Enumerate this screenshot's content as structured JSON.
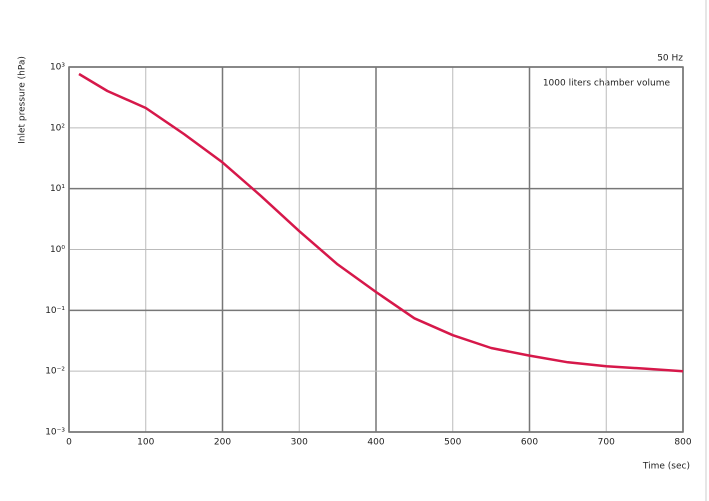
{
  "chart_data": {
    "type": "line",
    "log_y": true,
    "grid": true,
    "y_label": "Inlet pressure (hPa)",
    "x_label": "Time (sec)",
    "annotations": [
      "50 Hz",
      "1000 liters chamber volume"
    ],
    "xlim": [
      0,
      800
    ],
    "xticks": [
      0,
      100,
      200,
      300,
      400,
      500,
      600,
      700,
      800
    ],
    "ylim": [
      0.001,
      1000
    ],
    "yticks": [
      {
        "value": 0.001,
        "label": "10⁻³"
      },
      {
        "value": 0.01,
        "label": "10⁻²"
      },
      {
        "value": 0.1,
        "label": "10⁻¹"
      },
      {
        "value": 1,
        "label": "10⁰"
      },
      {
        "value": 10,
        "label": "10¹"
      },
      {
        "value": 100,
        "label": "10²"
      },
      {
        "value": 1000,
        "label": "10³"
      }
    ],
    "x": [
      13,
      50,
      100,
      150,
      200,
      250,
      300,
      350,
      400,
      450,
      500,
      550,
      600,
      650,
      700,
      750,
      800
    ],
    "series": [
      {
        "color": "#d6184a",
        "values": [
          767,
          403,
          212,
          79,
          27,
          7.6,
          2.0,
          0.57,
          0.2,
          0.074,
          0.039,
          0.024,
          0.018,
          0.014,
          0.012,
          0.011,
          0.01
        ]
      }
    ]
  }
}
